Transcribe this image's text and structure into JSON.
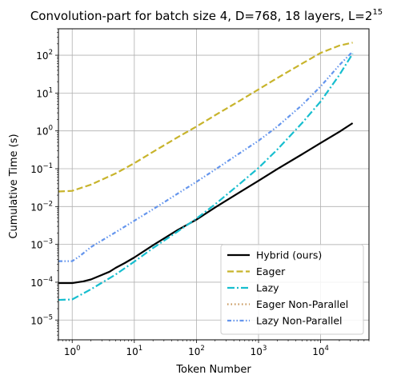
{
  "chart_data": {
    "type": "line",
    "title": "Convolution-part for batch size 4, D=768, 18 layers, L=2",
    "title_superscript": "15",
    "xlabel": "Token Number",
    "ylabel": "Cumulative Time (s)",
    "xscale": "log",
    "yscale": "log",
    "xlim": [
      0.6,
      60000
    ],
    "ylim": [
      3e-06,
      500
    ],
    "grid": true,
    "legend_position": "lower-right",
    "x_ticks": [
      {
        "value": 1,
        "label": "10",
        "exp": "0"
      },
      {
        "value": 10,
        "label": "10",
        "exp": "1"
      },
      {
        "value": 100,
        "label": "10",
        "exp": "2"
      },
      {
        "value": 1000,
        "label": "10",
        "exp": "3"
      },
      {
        "value": 10000,
        "label": "10",
        "exp": "4"
      }
    ],
    "y_ticks": [
      {
        "value": 1e-05,
        "label": "10",
        "exp": "−5"
      },
      {
        "value": 0.0001,
        "label": "10",
        "exp": "−4"
      },
      {
        "value": 0.001,
        "label": "10",
        "exp": "−3"
      },
      {
        "value": 0.01,
        "label": "10",
        "exp": "−2"
      },
      {
        "value": 0.1,
        "label": "10",
        "exp": "−1"
      },
      {
        "value": 1,
        "label": "10",
        "exp": "0"
      },
      {
        "value": 10,
        "label": "10",
        "exp": "1"
      },
      {
        "value": 100,
        "label": "10",
        "exp": "2"
      }
    ],
    "series": [
      {
        "name": "Hybrid (ours)",
        "color": "#000000",
        "dash": "solid",
        "x": [
          0.6,
          1,
          1.5,
          2,
          3,
          4,
          5,
          7,
          10,
          20,
          50,
          100,
          200,
          500,
          1000,
          2000,
          5000,
          10000,
          20000,
          32768
        ],
        "y": [
          9.5e-05,
          9.5e-05,
          0.000105,
          0.000118,
          0.000155,
          0.00019,
          0.00024,
          0.00032,
          0.00045,
          0.00095,
          0.0024,
          0.0045,
          0.0095,
          0.024,
          0.048,
          0.098,
          0.24,
          0.48,
          0.95,
          1.6
        ]
      },
      {
        "name": "Eager",
        "color": "#c8b42c",
        "dash": "dashed",
        "x": [
          0.6,
          1,
          2,
          5,
          10,
          20,
          50,
          100,
          200,
          500,
          1000,
          2000,
          5000,
          10000,
          20000,
          32768
        ],
        "y": [
          0.025,
          0.026,
          0.038,
          0.075,
          0.14,
          0.28,
          0.68,
          1.3,
          2.6,
          6.3,
          12.5,
          25,
          60,
          115,
          180,
          215
        ]
      },
      {
        "name": "Lazy",
        "color": "#17becf",
        "dash": "dashdot",
        "x": [
          0.6,
          1,
          2,
          5,
          10,
          20,
          50,
          100,
          200,
          500,
          1000,
          2000,
          5000,
          10000,
          20000,
          32768
        ],
        "y": [
          3.4e-05,
          3.5e-05,
          6.5e-05,
          0.00016,
          0.00035,
          0.0008,
          0.0022,
          0.0048,
          0.0115,
          0.04,
          0.105,
          0.32,
          1.6,
          6,
          30,
          110
        ]
      },
      {
        "name": "Eager Non-Parallel",
        "color": "#c8965a",
        "dash": "dotted",
        "x": [],
        "y": []
      },
      {
        "name": "Lazy Non-Parallel",
        "color": "#6495ed",
        "dash": "dashdotdot",
        "x": [
          0.6,
          1,
          1.3,
          2,
          5,
          10,
          20,
          50,
          100,
          200,
          500,
          1000,
          2000,
          5000,
          10000,
          20000,
          32768
        ],
        "y": [
          0.00036,
          0.00036,
          0.00048,
          0.00085,
          0.0021,
          0.0042,
          0.0085,
          0.022,
          0.045,
          0.095,
          0.26,
          0.55,
          1.3,
          4.8,
          15,
          55,
          125
        ]
      }
    ]
  }
}
